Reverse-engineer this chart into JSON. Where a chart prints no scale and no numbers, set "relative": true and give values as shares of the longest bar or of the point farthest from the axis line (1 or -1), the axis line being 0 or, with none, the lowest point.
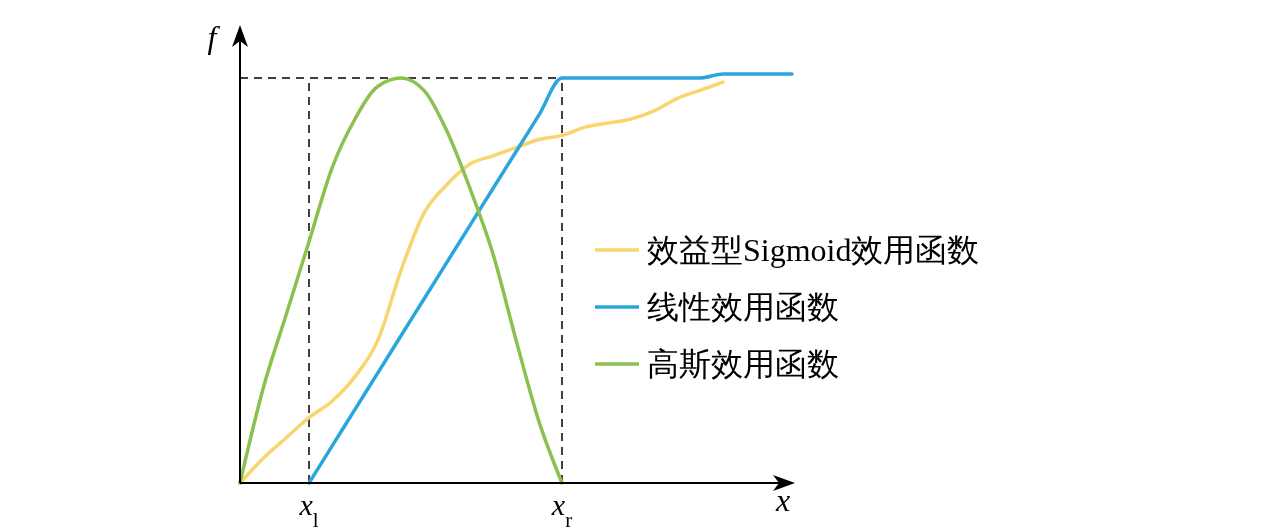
{
  "chart_data": {
    "type": "line",
    "relative": true,
    "xlabel": "x",
    "ylabel": "f",
    "categories": [
      null,
      null,
      null,
      "x$_{l}$",
      null,
      null,
      null,
      null,
      null,
      null,
      null,
      null,
      null,
      null,
      "x$_{r}$",
      null,
      null,
      null,
      null,
      null,
      null,
      null,
      null,
      null,
      null
    ],
    "legend": "right",
    "grid": false,
    "marker": "none",
    "line_style": "solid",
    "ref_lines": [
      {
        "axis": "x",
        "value": "x$_{l}$",
        "color": "#000000",
        "line_style": "dashed"
      },
      {
        "axis": "x",
        "value": "x$_{r}$",
        "color": "#000000",
        "line_style": "dashed"
      },
      {
        "axis": "y",
        "value": 0.99,
        "color": "#000000",
        "line_style": "dashed"
      }
    ],
    "series": [
      {
        "name": "效益型Sigmoid效用函数",
        "color": "#f9d56e",
        "values": [
          0,
          0.06,
          0.11,
          0.16,
          0.2,
          0.26,
          0.35,
          0.52,
          0.66,
          0.73,
          0.78,
          0.8,
          0.82,
          0.84,
          0.85,
          0.87,
          0.88,
          0.89,
          0.91,
          0.94,
          0.96,
          0.98,
          null,
          null,
          null
        ]
      },
      {
        "name": "线性效用函数",
        "color": "#2aa6dc",
        "values": [
          null,
          null,
          null,
          0,
          0.09,
          0.18,
          0.27,
          0.36,
          0.45,
          0.54,
          0.63,
          0.72,
          0.81,
          0.9,
          0.99,
          0.99,
          0.99,
          0.99,
          0.99,
          0.99,
          0.99,
          1,
          1,
          1,
          1
        ]
      },
      {
        "name": "高斯效用函数",
        "color": "#8cc04f",
        "values": [
          0,
          0.23,
          0.41,
          0.59,
          0.77,
          0.89,
          0.97,
          0.99,
          0.96,
          0.86,
          0.72,
          0.56,
          0.35,
          0.15,
          0,
          null,
          null,
          null,
          null,
          null,
          null,
          null,
          null,
          null,
          null
        ]
      }
    ]
  }
}
